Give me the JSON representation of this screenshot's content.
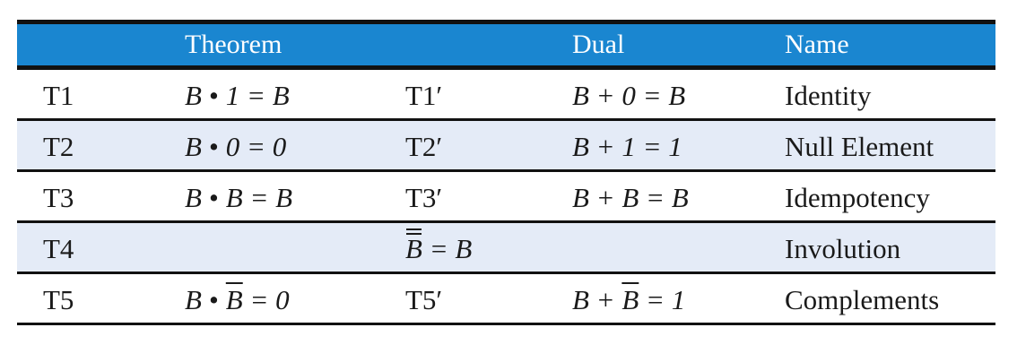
{
  "header": {
    "theorem": "Theorem",
    "dual": "Dual",
    "name": "Name"
  },
  "rows": [
    {
      "id": "T1",
      "theorem": {
        "lhs": "B",
        "op": "•",
        "rhs": "1 = B"
      },
      "dual_id": "T1′",
      "dual": "B + 0 = B",
      "name": "Identity"
    },
    {
      "id": "T2",
      "theorem": {
        "lhs": "B",
        "op": "•",
        "rhs": "0 = 0"
      },
      "dual_id": "T2′",
      "dual": "B + 1 = 1",
      "name": "Null Element"
    },
    {
      "id": "T3",
      "theorem": {
        "lhs": "B",
        "op": "•",
        "rhs": "B = B"
      },
      "dual_id": "T3′",
      "dual": "B + B = B",
      "name": "Idempotency"
    },
    {
      "id": "T4",
      "combined": {
        "var": "B",
        "rest": " = B"
      },
      "name": "Involution"
    },
    {
      "id": "T5",
      "theorem": {
        "lhs": "B",
        "op": "•",
        "rhs_var": "B",
        "rhs_rest": " = 0"
      },
      "dual_id": "T5′",
      "dual_lhs": "B + ",
      "dual_var": "B",
      "dual_rest": " = 1",
      "name": "Complements"
    }
  ],
  "colors": {
    "header_bg": "#1a86d0",
    "alt_row_bg": "#e4ebf7",
    "rule": "#111111"
  }
}
